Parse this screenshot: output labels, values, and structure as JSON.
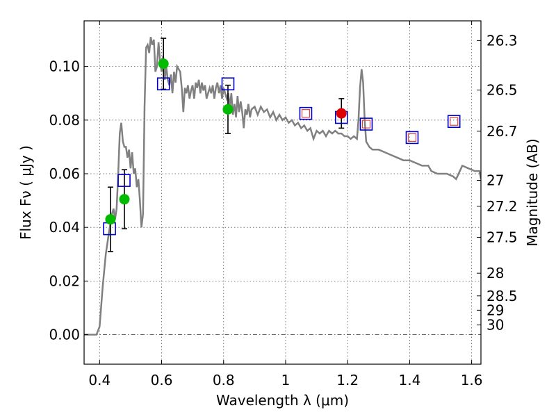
{
  "chart_data": {
    "type": "scatter",
    "xlabel": "Wavelength  λ (μm)",
    "ylabel": "Flux  Fν  ( μJy )",
    "y2label": "Magnitude (AB)",
    "xlim": [
      0.35,
      1.63
    ],
    "ylim": [
      -0.011,
      0.117
    ],
    "grid": true,
    "x_ticks": [
      0.4,
      0.6,
      0.8,
      1.0,
      1.2,
      1.4,
      1.6
    ],
    "x_tick_labels": [
      "0.4",
      "0.6",
      "0.8",
      "1",
      "1.2",
      "1.4",
      "1.6"
    ],
    "y_ticks": [
      0.0,
      0.02,
      0.04,
      0.06,
      0.08,
      0.1
    ],
    "y_tick_labels": [
      "0.00",
      "0.02",
      "0.04",
      "0.06",
      "0.08",
      "0.10"
    ],
    "mag_ticks": [
      26.3,
      26.5,
      26.7,
      27,
      27.2,
      27.5,
      28,
      28.5,
      29,
      30
    ],
    "mag_tick_labels": [
      "26.3",
      "26.5",
      "26.7",
      "27",
      "27.2",
      "27.5",
      "28",
      "28.5",
      "29",
      "30"
    ],
    "colors": {
      "model": "#808080",
      "observed_green": "#00bb00",
      "observed_red": "#dd0000",
      "model_box": "#0000cc",
      "inner_box": "#dd4444",
      "errorbar": "#000000"
    },
    "series": [
      {
        "kind": "line",
        "points": [
          [
            0.35,
            0.0
          ],
          [
            0.39,
            0.0
          ],
          [
            0.4,
            0.003
          ],
          [
            0.41,
            0.018
          ],
          [
            0.42,
            0.03
          ],
          [
            0.43,
            0.038
          ],
          [
            0.44,
            0.045
          ],
          [
            0.445,
            0.047
          ],
          [
            0.45,
            0.043
          ],
          [
            0.455,
            0.047
          ],
          [
            0.46,
            0.06
          ],
          [
            0.465,
            0.075
          ],
          [
            0.47,
            0.079
          ],
          [
            0.475,
            0.072
          ],
          [
            0.48,
            0.07
          ],
          [
            0.485,
            0.07
          ],
          [
            0.49,
            0.066
          ],
          [
            0.495,
            0.069
          ],
          [
            0.5,
            0.062
          ],
          [
            0.505,
            0.068
          ],
          [
            0.51,
            0.06
          ],
          [
            0.515,
            0.062
          ],
          [
            0.52,
            0.055
          ],
          [
            0.525,
            0.058
          ],
          [
            0.53,
            0.05
          ],
          [
            0.535,
            0.04
          ],
          [
            0.54,
            0.045
          ],
          [
            0.545,
            0.085
          ],
          [
            0.55,
            0.107
          ],
          [
            0.555,
            0.108
          ],
          [
            0.56,
            0.105
          ],
          [
            0.565,
            0.111
          ],
          [
            0.57,
            0.108
          ],
          [
            0.575,
            0.11
          ],
          [
            0.58,
            0.098
          ],
          [
            0.585,
            0.1
          ],
          [
            0.59,
            0.109
          ],
          [
            0.595,
            0.102
          ],
          [
            0.6,
            0.098
          ],
          [
            0.605,
            0.104
          ],
          [
            0.61,
            0.095
          ],
          [
            0.615,
            0.1
          ],
          [
            0.62,
            0.095
          ],
          [
            0.625,
            0.093
          ],
          [
            0.63,
            0.097
          ],
          [
            0.635,
            0.09
          ],
          [
            0.64,
            0.098
          ],
          [
            0.645,
            0.094
          ],
          [
            0.65,
            0.1
          ],
          [
            0.655,
            0.099
          ],
          [
            0.66,
            0.098
          ],
          [
            0.665,
            0.092
          ],
          [
            0.67,
            0.083
          ],
          [
            0.675,
            0.092
          ],
          [
            0.68,
            0.09
          ],
          [
            0.685,
            0.093
          ],
          [
            0.69,
            0.088
          ],
          [
            0.695,
            0.091
          ],
          [
            0.7,
            0.093
          ],
          [
            0.705,
            0.088
          ],
          [
            0.71,
            0.094
          ],
          [
            0.715,
            0.092
          ],
          [
            0.72,
            0.095
          ],
          [
            0.725,
            0.09
          ],
          [
            0.73,
            0.094
          ],
          [
            0.735,
            0.091
          ],
          [
            0.74,
            0.093
          ],
          [
            0.745,
            0.088
          ],
          [
            0.75,
            0.09
          ],
          [
            0.755,
            0.092
          ],
          [
            0.76,
            0.09
          ],
          [
            0.765,
            0.093
          ],
          [
            0.77,
            0.088
          ],
          [
            0.775,
            0.092
          ],
          [
            0.78,
            0.094
          ],
          [
            0.785,
            0.09
          ],
          [
            0.79,
            0.093
          ],
          [
            0.795,
            0.088
          ],
          [
            0.8,
            0.092
          ],
          [
            0.81,
            0.088
          ],
          [
            0.815,
            0.09
          ],
          [
            0.82,
            0.085
          ],
          [
            0.825,
            0.09
          ],
          [
            0.83,
            0.082
          ],
          [
            0.835,
            0.086
          ],
          [
            0.84,
            0.081
          ],
          [
            0.845,
            0.089
          ],
          [
            0.85,
            0.083
          ],
          [
            0.855,
            0.087
          ],
          [
            0.86,
            0.083
          ],
          [
            0.865,
            0.077
          ],
          [
            0.87,
            0.084
          ],
          [
            0.875,
            0.082
          ],
          [
            0.88,
            0.086
          ],
          [
            0.885,
            0.081
          ],
          [
            0.89,
            0.084
          ],
          [
            0.9,
            0.085
          ],
          [
            0.91,
            0.082
          ],
          [
            0.92,
            0.085
          ],
          [
            0.93,
            0.083
          ],
          [
            0.94,
            0.084
          ],
          [
            0.95,
            0.081
          ],
          [
            0.96,
            0.083
          ],
          [
            0.97,
            0.08
          ],
          [
            0.98,
            0.082
          ],
          [
            0.99,
            0.08
          ],
          [
            1.0,
            0.081
          ],
          [
            1.01,
            0.079
          ],
          [
            1.02,
            0.08
          ],
          [
            1.03,
            0.078
          ],
          [
            1.04,
            0.079
          ],
          [
            1.05,
            0.077
          ],
          [
            1.06,
            0.078
          ],
          [
            1.07,
            0.076
          ],
          [
            1.08,
            0.077
          ],
          [
            1.09,
            0.073
          ],
          [
            1.1,
            0.076
          ],
          [
            1.11,
            0.075
          ],
          [
            1.12,
            0.076
          ],
          [
            1.13,
            0.074
          ],
          [
            1.14,
            0.076
          ],
          [
            1.15,
            0.075
          ],
          [
            1.16,
            0.076
          ],
          [
            1.17,
            0.075
          ],
          [
            1.18,
            0.075
          ],
          [
            1.19,
            0.074
          ],
          [
            1.2,
            0.074
          ],
          [
            1.21,
            0.073
          ],
          [
            1.22,
            0.074
          ],
          [
            1.23,
            0.073
          ],
          [
            1.235,
            0.08
          ],
          [
            1.24,
            0.092
          ],
          [
            1.245,
            0.099
          ],
          [
            1.25,
            0.094
          ],
          [
            1.255,
            0.08
          ],
          [
            1.26,
            0.072
          ],
          [
            1.27,
            0.07
          ],
          [
            1.28,
            0.069
          ],
          [
            1.3,
            0.069
          ],
          [
            1.32,
            0.068
          ],
          [
            1.34,
            0.067
          ],
          [
            1.36,
            0.066
          ],
          [
            1.38,
            0.065
          ],
          [
            1.4,
            0.065
          ],
          [
            1.42,
            0.064
          ],
          [
            1.44,
            0.063
          ],
          [
            1.46,
            0.063
          ],
          [
            1.47,
            0.061
          ],
          [
            1.49,
            0.06
          ],
          [
            1.5,
            0.06
          ],
          [
            1.52,
            0.06
          ],
          [
            1.54,
            0.059
          ],
          [
            1.55,
            0.058
          ],
          [
            1.57,
            0.063
          ],
          [
            1.59,
            0.062
          ],
          [
            1.61,
            0.061
          ],
          [
            1.625,
            0.061
          ],
          [
            1.63,
            0.058
          ]
        ]
      },
      {
        "kind": "points-with-error",
        "marker": "filled-circle",
        "color": "observed_green",
        "points": [
          {
            "x": 0.435,
            "y": 0.043,
            "err": 0.012
          },
          {
            "x": 0.48,
            "y": 0.0505,
            "err": 0.011
          },
          {
            "x": 0.606,
            "y": 0.101,
            "err": 0.0095
          },
          {
            "x": 0.814,
            "y": 0.084,
            "err": 0.009
          }
        ]
      },
      {
        "kind": "points-with-error",
        "marker": "filled-circle",
        "color": "observed_red",
        "points": [
          {
            "x": 1.18,
            "y": 0.0825,
            "err": 0.0055
          }
        ]
      },
      {
        "kind": "points",
        "marker": "open-square",
        "color": "model_box",
        "points": [
          [
            0.432,
            0.0395
          ],
          [
            0.479,
            0.0575
          ],
          [
            0.606,
            0.0935
          ],
          [
            0.814,
            0.0935
          ],
          [
            1.065,
            0.0825
          ],
          [
            1.18,
            0.081
          ],
          [
            1.26,
            0.0785
          ],
          [
            1.408,
            0.0735
          ],
          [
            1.543,
            0.0795
          ]
        ]
      },
      {
        "kind": "points",
        "marker": "small-open-square",
        "color": "inner_box",
        "points": [
          [
            1.065,
            0.0825
          ],
          [
            1.26,
            0.0785
          ],
          [
            1.408,
            0.0735
          ],
          [
            1.543,
            0.0795
          ]
        ]
      }
    ]
  }
}
